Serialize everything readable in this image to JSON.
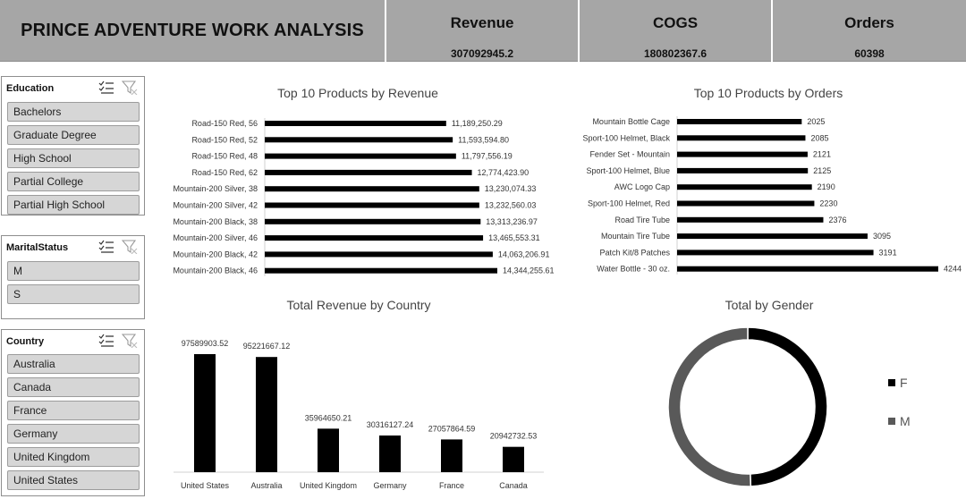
{
  "header": {
    "title": "PRINCE ADVENTURE WORK ANALYSIS",
    "kpis": [
      {
        "label": "Revenue",
        "value": "307092945.2"
      },
      {
        "label": "COGS",
        "value": "180802367.6"
      },
      {
        "label": "Orders",
        "value": "60398"
      }
    ]
  },
  "slicers": {
    "education": {
      "title": "Education",
      "items": [
        "Bachelors",
        "Graduate Degree",
        "High School",
        "Partial College",
        "Partial High School"
      ]
    },
    "marital": {
      "title": "MaritalStatus",
      "items": [
        "M",
        "S"
      ]
    },
    "country": {
      "title": "Country",
      "items": [
        "Australia",
        "Canada",
        "France",
        "Germany",
        "United Kingdom",
        "United States"
      ]
    },
    "icons": [
      "multi-select-icon",
      "clear-filter-icon"
    ]
  },
  "colors": {
    "header_bg": "#a6a6a6",
    "bar": "#000000",
    "gender_f": "#000000",
    "gender_m": "#595959",
    "slicer_button": "#d6d6d6"
  },
  "chart_data": [
    {
      "type": "bar",
      "orientation": "horizontal",
      "title": "Top 10 Products by Revenue",
      "categories": [
        "Road-150 Red, 56",
        "Road-150 Red, 52",
        "Road-150 Red, 48",
        "Road-150 Red, 62",
        "Mountain-200 Silver, 38",
        "Mountain-200 Silver, 42",
        "Mountain-200 Black, 38",
        "Mountain-200 Silver, 46",
        "Mountain-200 Black, 42",
        "Mountain-200 Black, 46"
      ],
      "values": [
        11189250.29,
        11593594.8,
        11797556.19,
        12774423.9,
        13230074.33,
        13232560.03,
        13313236.97,
        13465553.31,
        14063206.91,
        14344255.61
      ],
      "labels": [
        "11,189,250.29",
        "11,593,594.80",
        "11,797,556.19",
        "12,774,423.90",
        "13,230,074.33",
        "13,232,560.03",
        "13,313,236.97",
        "13,465,553.31",
        "14,063,206.91",
        "14,344,255.61"
      ]
    },
    {
      "type": "bar",
      "orientation": "horizontal",
      "title": "Top 10 Products by Orders",
      "categories": [
        "Mountain Bottle Cage",
        "Sport-100 Helmet, Black",
        "Fender Set - Mountain",
        "Sport-100 Helmet, Blue",
        "AWC Logo Cap",
        "Sport-100 Helmet, Red",
        "Road Tire Tube",
        "Mountain Tire Tube",
        "Patch Kit/8 Patches",
        "Water Bottle - 30 oz."
      ],
      "values": [
        2025,
        2085,
        2121,
        2125,
        2190,
        2230,
        2376,
        3095,
        3191,
        4244
      ],
      "labels": [
        "2025",
        "2085",
        "2121",
        "2125",
        "2190",
        "2230",
        "2376",
        "3095",
        "3191",
        "4244"
      ]
    },
    {
      "type": "bar",
      "orientation": "vertical",
      "title": "Total Revenue by Country",
      "categories": [
        "United States",
        "Australia",
        "United Kingdom",
        "Germany",
        "France",
        "Canada"
      ],
      "values": [
        97589903.52,
        95221667.12,
        35964650.21,
        30316127.24,
        27057864.59,
        20942732.53
      ],
      "labels": [
        "97589903.52",
        "95221667.12",
        "35964650.21",
        "30316127.24",
        "27057864.59",
        "20942732.53"
      ]
    },
    {
      "type": "pie",
      "subtype": "donut",
      "title": "Total by Gender",
      "categories": [
        "F",
        "M"
      ],
      "values": [
        0.494,
        0.506
      ],
      "legend": "right"
    }
  ]
}
